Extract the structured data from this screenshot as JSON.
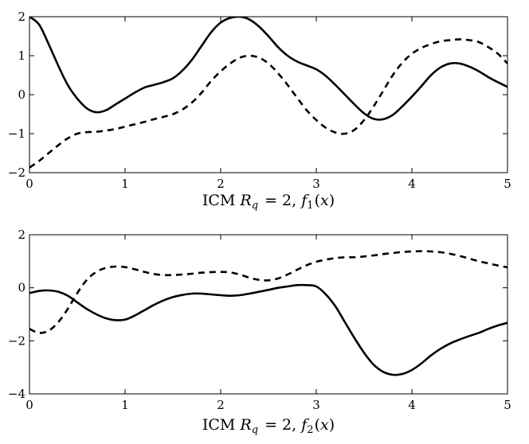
{
  "chart_data": [
    {
      "type": "line",
      "xlabel": "ICM  R_q = 2,  f_1(x)",
      "xlabel_parts": {
        "prefix": "ICM",
        "var": "R",
        "sub": "q",
        "mid": " = 2, ",
        "f": "f",
        "fsub": "1",
        "arg": "(x)"
      },
      "xlim": [
        0,
        5
      ],
      "ylim": [
        -2,
        2
      ],
      "xticks": [
        0,
        1,
        2,
        3,
        4,
        5
      ],
      "yticks": [
        -2,
        -1,
        0,
        1,
        2
      ],
      "xtick_labels": [
        "0",
        "1",
        "2",
        "3",
        "4",
        "5"
      ],
      "ytick_labels": [
        "−2",
        "−1",
        "0",
        "1",
        "2"
      ],
      "series": [
        {
          "style": "solid",
          "x": [
            0,
            0.1,
            0.2,
            0.3,
            0.4,
            0.5,
            0.6,
            0.7,
            0.8,
            0.9,
            1.0,
            1.1,
            1.2,
            1.3,
            1.4,
            1.5,
            1.6,
            1.7,
            1.8,
            1.9,
            2.0,
            2.1,
            2.2,
            2.3,
            2.4,
            2.5,
            2.6,
            2.7,
            2.8,
            2.9,
            3.0,
            3.1,
            3.2,
            3.3,
            3.4,
            3.5,
            3.6,
            3.7,
            3.8,
            3.9,
            4.0,
            4.1,
            4.2,
            4.3,
            4.4,
            4.5,
            4.6,
            4.7,
            4.8,
            4.9,
            5.0
          ],
          "y": [
            2.0,
            1.8,
            1.3,
            0.75,
            0.25,
            -0.1,
            -0.35,
            -0.45,
            -0.4,
            -0.25,
            -0.1,
            0.05,
            0.18,
            0.25,
            0.32,
            0.42,
            0.62,
            0.9,
            1.25,
            1.6,
            1.85,
            1.97,
            2.0,
            1.93,
            1.75,
            1.5,
            1.22,
            1.0,
            0.85,
            0.75,
            0.65,
            0.48,
            0.25,
            0.0,
            -0.25,
            -0.48,
            -0.62,
            -0.63,
            -0.52,
            -0.3,
            -0.05,
            0.22,
            0.5,
            0.7,
            0.8,
            0.8,
            0.72,
            0.6,
            0.45,
            0.32,
            0.2
          ]
        },
        {
          "style": "dashed",
          "x": [
            0,
            0.1,
            0.2,
            0.3,
            0.4,
            0.5,
            0.6,
            0.7,
            0.8,
            0.9,
            1.0,
            1.1,
            1.2,
            1.3,
            1.4,
            1.5,
            1.6,
            1.7,
            1.8,
            1.9,
            2.0,
            2.1,
            2.2,
            2.3,
            2.4,
            2.5,
            2.6,
            2.7,
            2.8,
            2.9,
            3.0,
            3.1,
            3.2,
            3.3,
            3.4,
            3.5,
            3.6,
            3.7,
            3.8,
            3.9,
            4.0,
            4.1,
            4.2,
            4.3,
            4.4,
            4.5,
            4.6,
            4.7,
            4.8,
            4.9,
            5.0
          ],
          "y": [
            -1.87,
            -1.7,
            -1.5,
            -1.3,
            -1.12,
            -1.0,
            -0.96,
            -0.95,
            -0.92,
            -0.88,
            -0.82,
            -0.76,
            -0.7,
            -0.63,
            -0.57,
            -0.5,
            -0.38,
            -0.2,
            0.05,
            0.35,
            0.6,
            0.8,
            0.95,
            1.0,
            0.95,
            0.8,
            0.55,
            0.25,
            -0.08,
            -0.4,
            -0.65,
            -0.85,
            -0.97,
            -1.0,
            -0.9,
            -0.65,
            -0.3,
            0.1,
            0.5,
            0.82,
            1.05,
            1.2,
            1.3,
            1.37,
            1.4,
            1.42,
            1.4,
            1.35,
            1.22,
            1.05,
            0.8
          ]
        }
      ]
    },
    {
      "type": "line",
      "xlabel": "ICM  R_q = 2,  f_2(x)",
      "xlabel_parts": {
        "prefix": "ICM",
        "var": "R",
        "sub": "q",
        "mid": " = 2, ",
        "f": "f",
        "fsub": "2",
        "arg": "(x)"
      },
      "xlim": [
        0,
        5
      ],
      "ylim": [
        -4,
        2
      ],
      "xticks": [
        0,
        1,
        2,
        3,
        4,
        5
      ],
      "yticks": [
        -4,
        -2,
        0,
        2
      ],
      "xtick_labels": [
        "0",
        "1",
        "2",
        "3",
        "4",
        "5"
      ],
      "ytick_labels": [
        "−4",
        "−2",
        "0",
        "2"
      ],
      "series": [
        {
          "style": "solid",
          "x": [
            0,
            0.1,
            0.2,
            0.3,
            0.4,
            0.5,
            0.6,
            0.7,
            0.8,
            0.9,
            1.0,
            1.1,
            1.2,
            1.3,
            1.4,
            1.5,
            1.6,
            1.7,
            1.8,
            1.9,
            2.0,
            2.1,
            2.2,
            2.3,
            2.4,
            2.5,
            2.6,
            2.7,
            2.8,
            2.9,
            3.0,
            3.1,
            3.2,
            3.3,
            3.4,
            3.5,
            3.6,
            3.7,
            3.8,
            3.9,
            4.0,
            4.1,
            4.2,
            4.3,
            4.4,
            4.5,
            4.6,
            4.7,
            4.8,
            4.9,
            5.0
          ],
          "y": [
            -0.2,
            -0.12,
            -0.1,
            -0.15,
            -0.3,
            -0.55,
            -0.8,
            -1.0,
            -1.15,
            -1.22,
            -1.2,
            -1.05,
            -0.85,
            -0.65,
            -0.48,
            -0.35,
            -0.27,
            -0.22,
            -0.22,
            -0.25,
            -0.28,
            -0.3,
            -0.28,
            -0.22,
            -0.15,
            -0.08,
            0.0,
            0.05,
            0.1,
            0.1,
            0.05,
            -0.25,
            -0.7,
            -1.3,
            -1.9,
            -2.45,
            -2.9,
            -3.17,
            -3.28,
            -3.25,
            -3.1,
            -2.85,
            -2.55,
            -2.3,
            -2.1,
            -1.95,
            -1.82,
            -1.7,
            -1.55,
            -1.42,
            -1.32
          ]
        },
        {
          "style": "dashed",
          "x": [
            0,
            0.1,
            0.2,
            0.3,
            0.4,
            0.5,
            0.6,
            0.7,
            0.8,
            0.9,
            1.0,
            1.1,
            1.2,
            1.3,
            1.4,
            1.5,
            1.6,
            1.7,
            1.8,
            1.9,
            2.0,
            2.1,
            2.2,
            2.3,
            2.4,
            2.5,
            2.6,
            2.7,
            2.8,
            2.9,
            3.0,
            3.1,
            3.2,
            3.3,
            3.4,
            3.5,
            3.6,
            3.7,
            3.8,
            3.9,
            4.0,
            4.1,
            4.2,
            4.3,
            4.4,
            4.5,
            4.6,
            4.7,
            4.8,
            4.9,
            5.0
          ],
          "y": [
            -1.55,
            -1.7,
            -1.62,
            -1.3,
            -0.8,
            -0.2,
            0.3,
            0.6,
            0.75,
            0.8,
            0.78,
            0.7,
            0.6,
            0.52,
            0.48,
            0.48,
            0.5,
            0.53,
            0.57,
            0.59,
            0.6,
            0.58,
            0.5,
            0.38,
            0.3,
            0.28,
            0.35,
            0.5,
            0.68,
            0.85,
            0.98,
            1.06,
            1.12,
            1.15,
            1.15,
            1.18,
            1.22,
            1.27,
            1.31,
            1.35,
            1.37,
            1.38,
            1.37,
            1.34,
            1.28,
            1.2,
            1.1,
            1.0,
            0.92,
            0.84,
            0.77
          ]
        }
      ]
    }
  ]
}
